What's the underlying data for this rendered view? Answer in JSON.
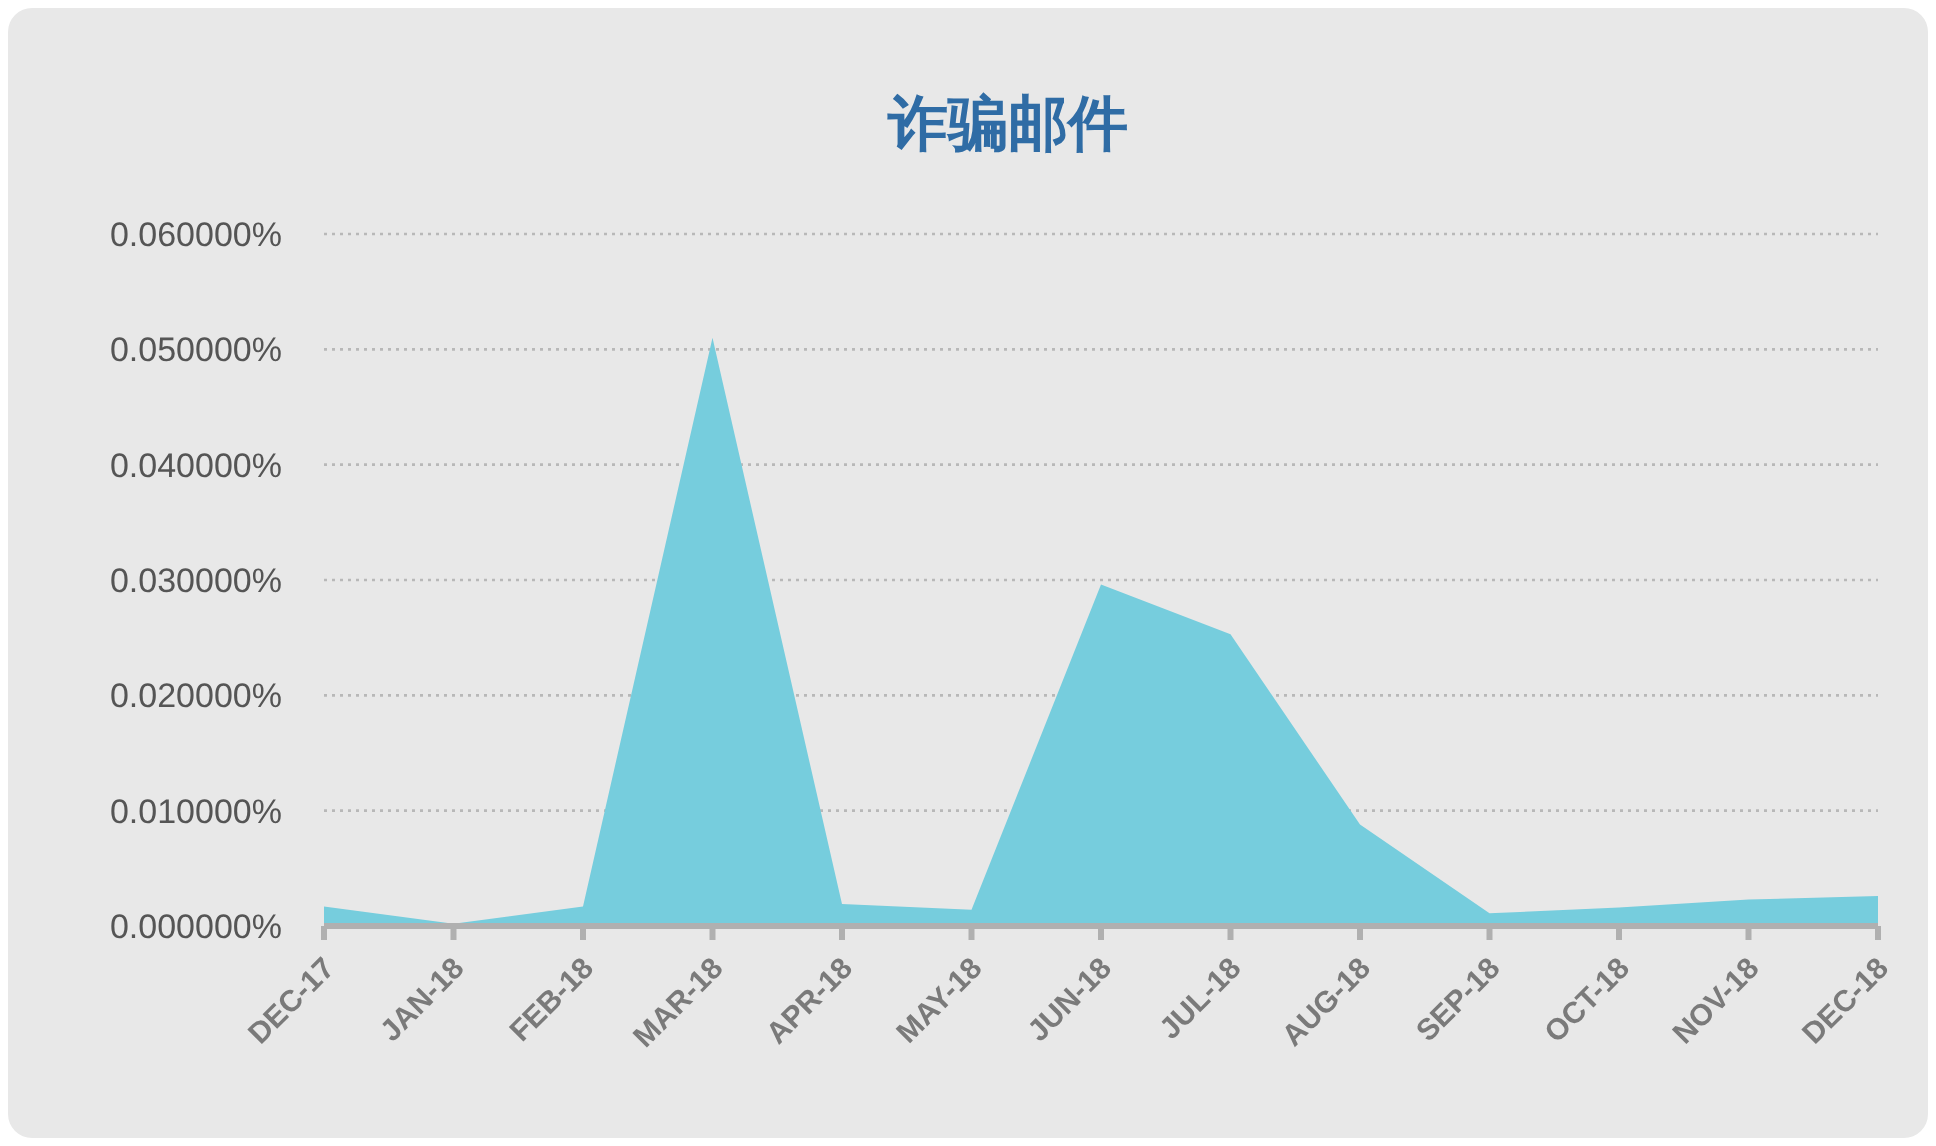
{
  "chart_data": {
    "type": "area",
    "title": "诈骗邮件",
    "categories": [
      "DEC-17",
      "JAN-18",
      "FEB-18",
      "MAR-18",
      "APR-18",
      "MAY-18",
      "JUN-18",
      "JUL-18",
      "AUG-18",
      "SEP-18",
      "OCT-18",
      "NOV-18",
      "DEC-18"
    ],
    "values": [
      0.0017,
      0.0002,
      0.0017,
      0.051,
      0.0019,
      0.0014,
      0.0296,
      0.0253,
      0.0088,
      0.0011,
      0.0016,
      0.0023,
      0.0026
    ],
    "color": "#76cddd",
    "ylim": [
      0,
      0.06
    ],
    "yticks": [
      {
        "value": 0,
        "label": "0.000000%"
      },
      {
        "value": 0.01,
        "label": "0.010000%"
      },
      {
        "value": 0.02,
        "label": "0.020000%"
      },
      {
        "value": 0.03,
        "label": "0.030000%"
      },
      {
        "value": 0.04,
        "label": "0.040000%"
      },
      {
        "value": 0.05,
        "label": "0.050000%"
      },
      {
        "value": 0.06,
        "label": "0.060000%"
      }
    ],
    "grid": "y"
  }
}
